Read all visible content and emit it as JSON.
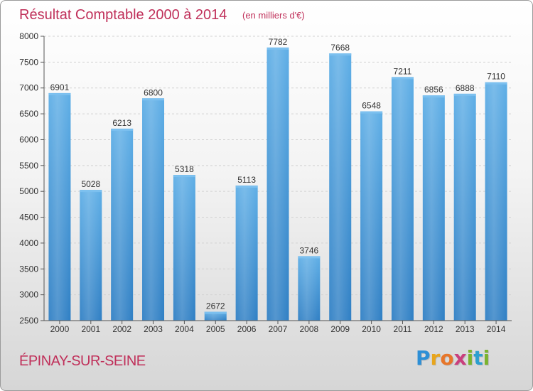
{
  "chart_data": {
    "type": "bar",
    "title": "Résultat Comptable 2000 à 2014",
    "subtitle": "(en milliers d'€)",
    "categories": [
      "2000",
      "2001",
      "2002",
      "2003",
      "2004",
      "2005",
      "2006",
      "2007",
      "2008",
      "2009",
      "2010",
      "2011",
      "2012",
      "2013",
      "2014"
    ],
    "values": [
      6901,
      5028,
      6213,
      6800,
      5318,
      2672,
      5113,
      7782,
      3746,
      7668,
      6548,
      7211,
      6856,
      6888,
      7110
    ],
    "ylim": [
      2500,
      8000
    ],
    "yticks": [
      "2500",
      "3000",
      "3500",
      "4000",
      "4500",
      "5000",
      "5500",
      "6000",
      "6500",
      "7000",
      "7500",
      "8000"
    ],
    "grid": true,
    "bar_color": "#4f9fdc"
  },
  "footer": {
    "commune": "ÉPINAY-SUR-SEINE",
    "logo_letters": [
      "P",
      "r",
      "o",
      "x",
      "i",
      "t",
      "i"
    ],
    "logo_colors": [
      "#2d8fd6",
      "#e8a51c",
      "#e7762a",
      "#c93f7d",
      "#7bb32e",
      "#2d9fcf",
      "#7bb32e"
    ]
  }
}
